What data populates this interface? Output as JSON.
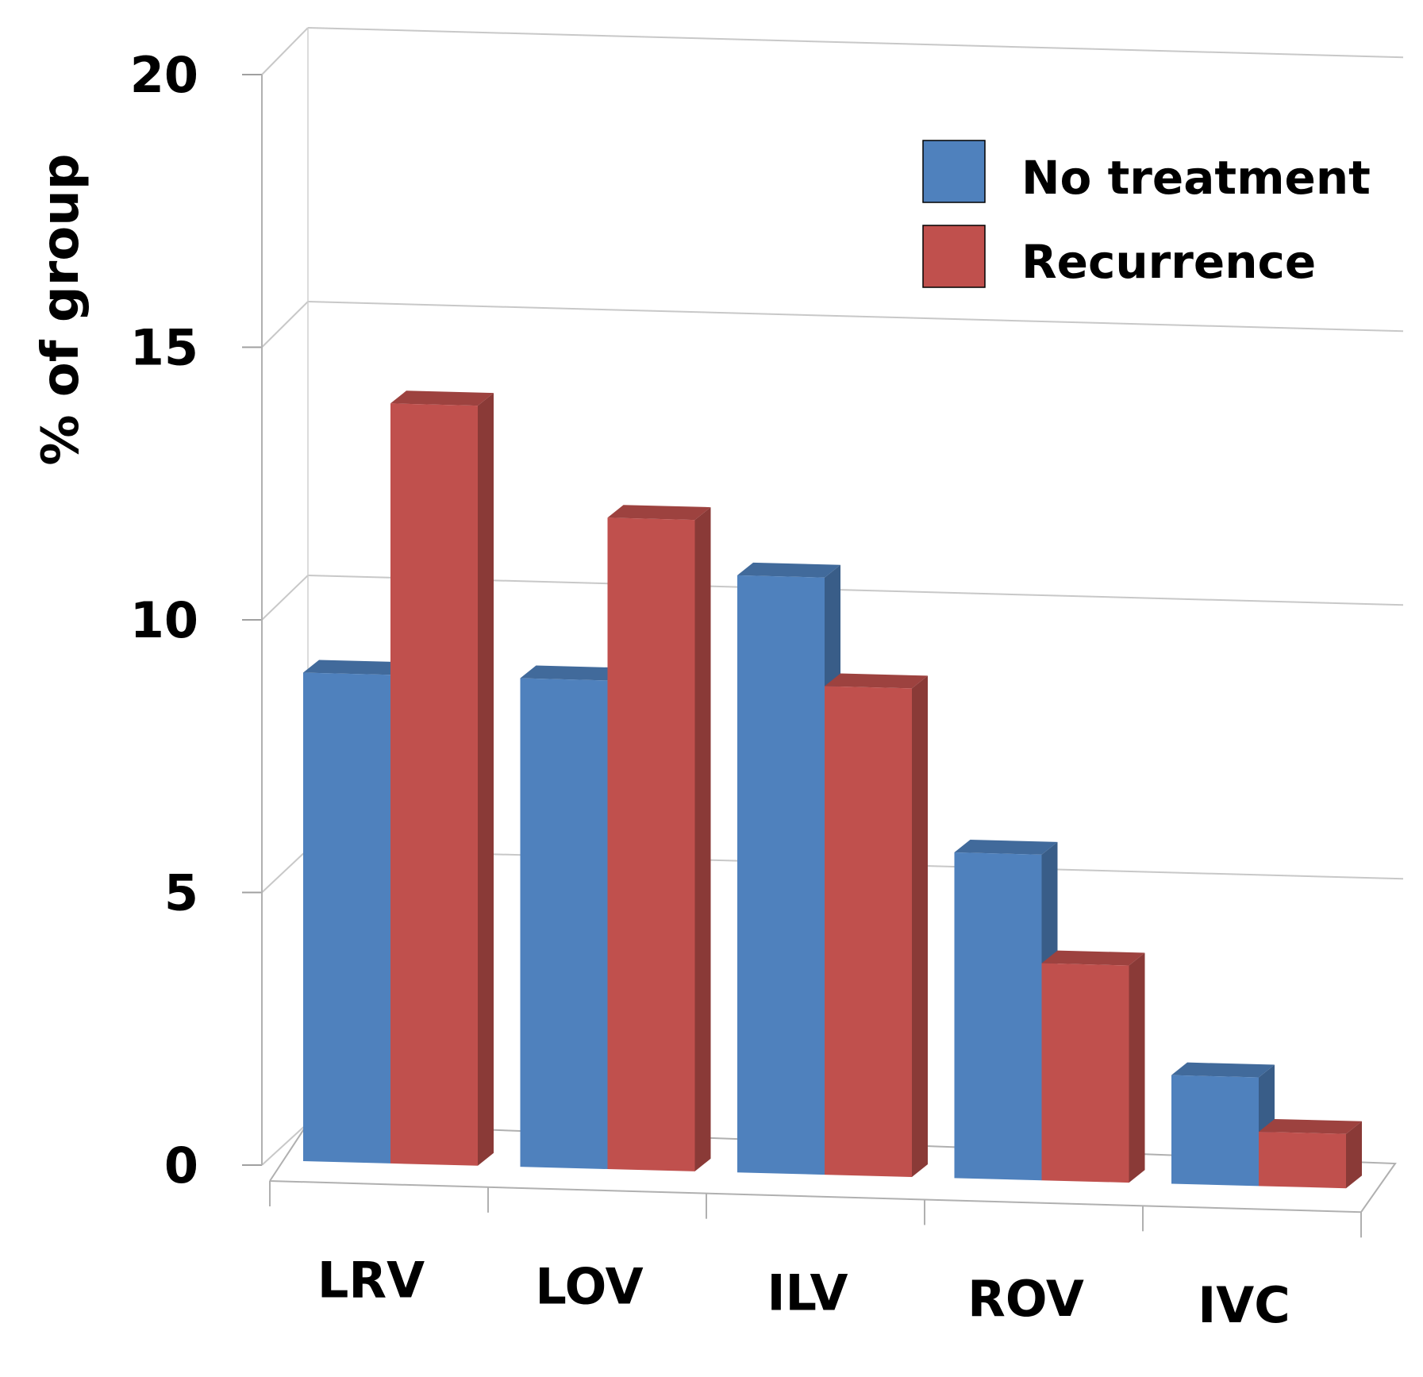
{
  "chart_data": {
    "type": "bar",
    "style": "3d-clustered-column",
    "title": "",
    "xlabel": "",
    "ylabel": "% of group",
    "ylim": [
      0,
      20
    ],
    "yticks": [
      0,
      5,
      10,
      15,
      20
    ],
    "grid": true,
    "legend": "top-right",
    "categories": [
      "LRV",
      "LOV",
      "ILV",
      "ROV",
      "IVC"
    ],
    "series": [
      {
        "name": "No treatment",
        "color": "#4F81BD",
        "values": [
          9,
          9,
          11,
          6,
          2
        ]
      },
      {
        "name": "Recurrence",
        "color": "#C0504D",
        "values": [
          14,
          12,
          9,
          4,
          1
        ]
      }
    ]
  }
}
